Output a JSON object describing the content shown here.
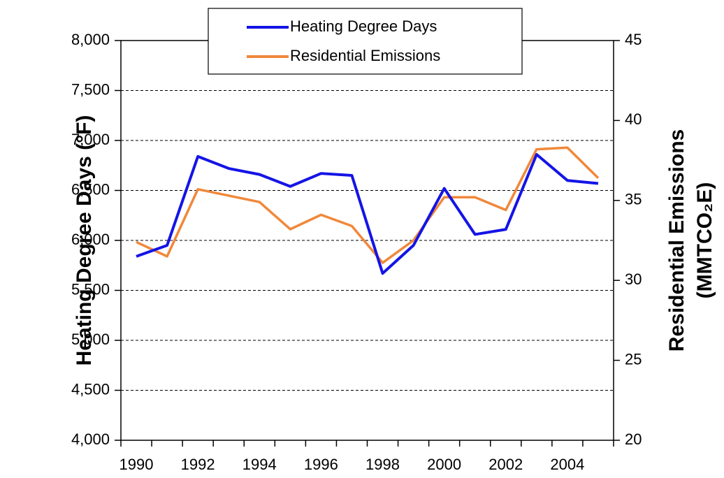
{
  "chart_data": {
    "type": "line",
    "categories": [
      "1990",
      null,
      "1992",
      null,
      "1994",
      null,
      "1996",
      null,
      "1998",
      null,
      "2000",
      null,
      "2002",
      null,
      "2004",
      null
    ],
    "series": [
      {
        "name": "Heating Degree Days",
        "color": "#1414e6",
        "values": [
          5840,
          5950,
          6840,
          6720,
          6660,
          6540,
          6670,
          6650,
          5670,
          5950,
          6520,
          6060,
          6110,
          6860,
          6600,
          6570
        ]
      },
      {
        "name": "Residential Emissions",
        "color": "#f0883a",
        "axis": "y2",
        "values": [
          32.4,
          31.5,
          35.7,
          35.3,
          34.9,
          33.2,
          34.1,
          33.4,
          31.1,
          32.5,
          35.2,
          35.2,
          34.4,
          38.2,
          38.3,
          36.4
        ]
      }
    ],
    "ylabel": "Heating Degree Days  (°F)",
    "y2label": [
      "Residential Emissions",
      "(MMTCO₂E)"
    ],
    "ylim": [
      4000,
      8000
    ],
    "yticks": [
      {
        "value": 4000,
        "label": "4,000"
      },
      {
        "value": 4500,
        "label": "4,500"
      },
      {
        "value": 5000,
        "label": "5,000"
      },
      {
        "value": 5500,
        "label": "5,500"
      },
      {
        "value": 6000,
        "label": "6,000"
      },
      {
        "value": 6500,
        "label": "6,500"
      },
      {
        "value": 7000,
        "label": "7,000"
      },
      {
        "value": 7500,
        "label": "7,500"
      },
      {
        "value": 8000,
        "label": "8,000"
      }
    ],
    "y2lim": [
      20,
      45
    ],
    "y2ticks": [
      20,
      25,
      30,
      35,
      40,
      45
    ],
    "grid": true,
    "legend": "top"
  }
}
